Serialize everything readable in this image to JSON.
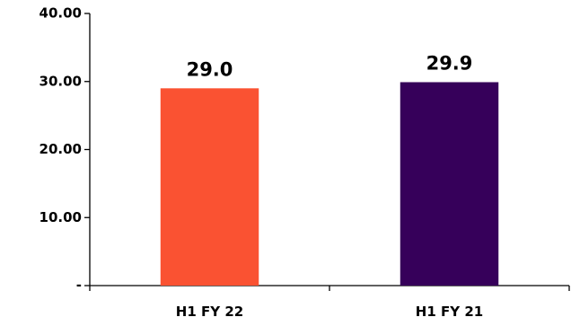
{
  "chart_data": {
    "type": "bar",
    "categories": [
      "H1 FY 22",
      "H1 FY 21"
    ],
    "values": [
      29.0,
      29.9
    ],
    "data_labels": [
      "29.0",
      "29.9"
    ],
    "colors": [
      "#fa5232",
      "#36005a"
    ],
    "ylim": [
      0,
      40
    ],
    "y_ticks": [
      0,
      10,
      20,
      30,
      40
    ],
    "y_tick_labels": [
      "-",
      "10.00",
      "20.00",
      "30.00",
      "40.00"
    ],
    "grid": false,
    "legend": "none",
    "title": "",
    "xlabel": "",
    "ylabel": ""
  }
}
